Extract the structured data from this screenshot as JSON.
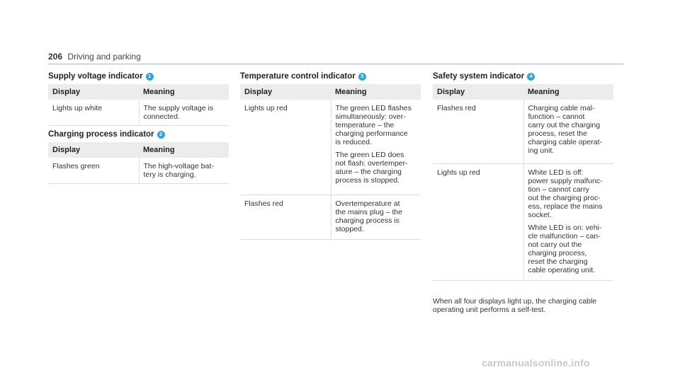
{
  "header": {
    "page_number": "206",
    "running_title": "Driving and parking"
  },
  "columns": {
    "display": "Display",
    "meaning": "Meaning"
  },
  "supply": {
    "title": "Supply voltage indicator",
    "badge": "1",
    "rows": [
      {
        "display": "Lights up white",
        "meaning": [
          "The supply voltage is",
          "connected."
        ]
      }
    ]
  },
  "charging": {
    "title": "Charging process indicator",
    "badge": "2",
    "rows": [
      {
        "display": "Flashes green",
        "meaning": [
          "The high-voltage bat-",
          "tery is charging."
        ]
      }
    ]
  },
  "temperature": {
    "title": "Temperature control indicator",
    "badge": "3",
    "rows": [
      {
        "display": "Lights up red",
        "meaning": [
          "The green LED flashes",
          "simultaneously: over-",
          "temperature – the",
          "charging performance",
          "is reduced."
        ],
        "meaning2": [
          "The green LED does",
          "not flash: overtemper-",
          "ature – the charging",
          "process is stopped."
        ]
      },
      {
        "display": "Flashes red",
        "meaning": [
          "Overtemperature at",
          "the mains plug – the",
          "charging process is",
          "stopped."
        ]
      }
    ]
  },
  "safety": {
    "title": "Safety system indicator",
    "badge": "4",
    "rows": [
      {
        "display": "Flashes red",
        "meaning": [
          "Charging cable mal-",
          "function – cannot",
          "carry out the charging",
          "process, reset the",
          "charging cable operat-",
          "ing unit."
        ]
      },
      {
        "display": "Lights up red",
        "meaning": [
          "White LED is off:",
          "power supply malfunc-",
          "tion – cannot carry",
          "out the charging proc-",
          "ess, replace the mains",
          "socket."
        ],
        "meaning2": [
          "White LED is on: vehi-",
          "cle malfunction – can-",
          "not carry out the",
          "charging process,",
          "reset the charging",
          "cable operating unit."
        ]
      }
    ]
  },
  "note": [
    "When all four displays light up, the charging cable",
    "operating unit performs a self-test."
  ],
  "watermark": "carmanualsonline.info",
  "colors": {
    "badge": "#2fa4d8",
    "header_rule": "#9eb4c4",
    "table_header_bg": "#ececec"
  }
}
